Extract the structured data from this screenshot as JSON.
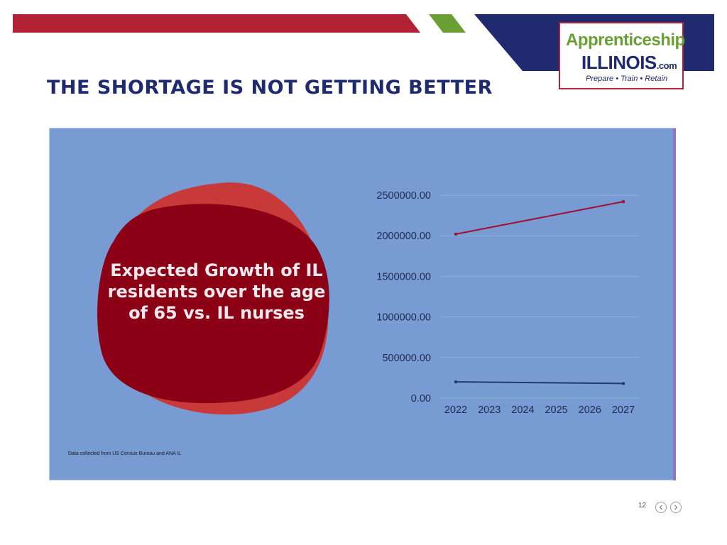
{
  "slide": {
    "title": "THE SHORTAGE IS NOT GETTING BETTER",
    "page_number": "12"
  },
  "logo": {
    "line1": "Apprenticeship",
    "line2": "ILLINOIS",
    "line2_suffix": ".com",
    "tagline": "Prepare • Train • Retain"
  },
  "infographic": {
    "heading": "Expected Growth of IL residents over the age of 65 vs. IL nurses",
    "source_note": "Data collected from US Census Bureau and ANA IL"
  },
  "colors": {
    "navy": "#1f2b6e",
    "red": "#b22234",
    "green": "#6aa033",
    "panel_blue": "#779bd2",
    "blob_dark": "#8c0016",
    "blob_light": "#c83a3a",
    "series_65plus": "#a01030",
    "series_nurses": "#1e3a6e"
  },
  "nav": {
    "prev_icon": "chevron-left-icon",
    "next_icon": "chevron-right-icon"
  },
  "chart_data": {
    "type": "line",
    "title": "",
    "xlabel": "",
    "ylabel": "",
    "x": [
      "2022",
      "2023",
      "2024",
      "2025",
      "2026",
      "2027"
    ],
    "y_ticks": [
      "0.00",
      "500000.00",
      "1000000.00",
      "1500000.00",
      "2000000.00",
      "2500000.00"
    ],
    "ylim": [
      0,
      2500000
    ],
    "grid": true,
    "legend": "none",
    "series": [
      {
        "values": [
          2020000,
          null,
          null,
          null,
          null,
          2420000
        ]
      },
      {
        "values": [
          200000,
          null,
          null,
          null,
          null,
          180000
        ]
      }
    ]
  }
}
